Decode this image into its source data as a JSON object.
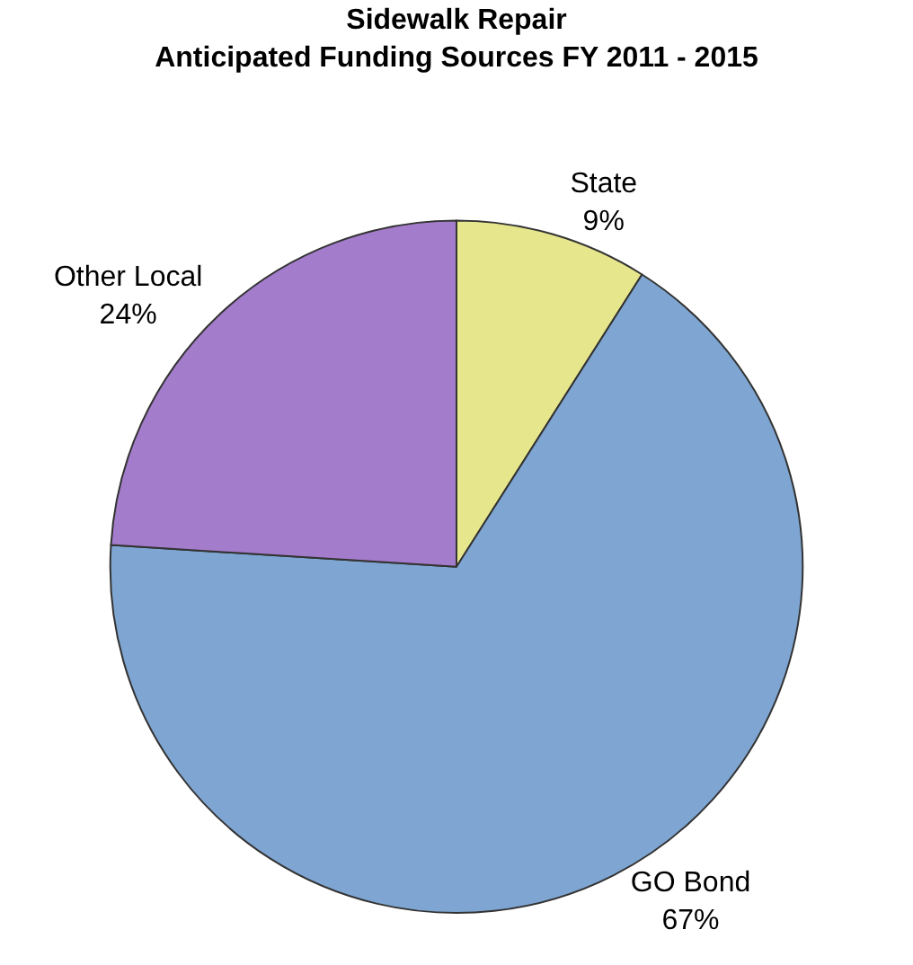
{
  "chart_data": {
    "type": "pie",
    "title": "Sidewalk Repair\nAnticipated Funding Sources FY 2011 - 2015",
    "categories": [
      "State",
      "GO Bond",
      "Other Local"
    ],
    "values": [
      9,
      67,
      24
    ],
    "value_labels": [
      "9%",
      "67%",
      "24%"
    ],
    "colors": [
      "#e6e68c",
      "#7fa6d2",
      "#a47ccc"
    ],
    "legend": false
  }
}
